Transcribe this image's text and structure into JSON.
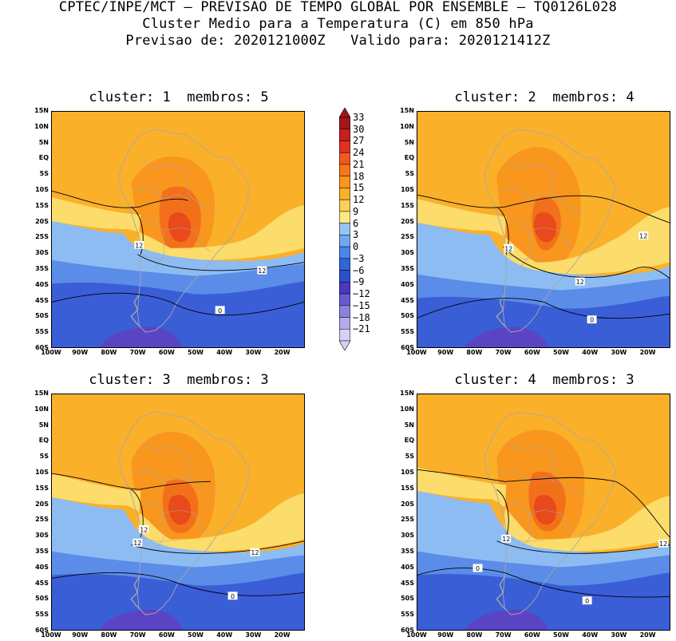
{
  "header": {
    "line1": "CPTEC/INPE/MCT — PREVISAO DE TEMPO GLOBAL POR ENSEMBLE — TQ0126L028",
    "line2": "Cluster Medio para a Temperatura (C) em 850 hPa",
    "line3": "Previsao de: 2020121000Z   Valido para: 2020121412Z"
  },
  "panels": [
    {
      "title": "cluster: 1  membros: 5",
      "contour_labels": [
        "12",
        "12",
        "0"
      ]
    },
    {
      "title": "cluster: 2  membros: 4",
      "contour_labels": [
        "12",
        "12",
        "12",
        "0"
      ]
    },
    {
      "title": "cluster: 3  membros: 3",
      "contour_labels": [
        "12",
        "12",
        "12",
        "0"
      ]
    },
    {
      "title": "cluster: 4  membros: 3",
      "contour_labels": [
        "12",
        "12",
        "0",
        "0"
      ]
    }
  ],
  "lat_labels": [
    "15N",
    "10N",
    "5N",
    "EQ",
    "5S",
    "10S",
    "15S",
    "20S",
    "25S",
    "30S",
    "35S",
    "40S",
    "45S",
    "50S",
    "55S",
    "60S"
  ],
  "lon_labels": [
    "100W",
    "90W",
    "80W",
    "70W",
    "60W",
    "50W",
    "40W",
    "30W",
    "20W"
  ],
  "colorbar": {
    "labels": [
      "33",
      "30",
      "27",
      "24",
      "21",
      "18",
      "15",
      "12",
      "9",
      "6",
      "3",
      "0",
      "−3",
      "−6",
      "−9",
      "−12",
      "−15",
      "−18",
      "−21"
    ],
    "colors": [
      "#a3141c",
      "#c81e1e",
      "#e03220",
      "#f05a1e",
      "#f7761a",
      "#fa961c",
      "#fbb02a",
      "#fcd056",
      "#fdea84",
      "#98c4f4",
      "#6fa8ef",
      "#4a86e6",
      "#2f66d8",
      "#2a4fca",
      "#4a38c0",
      "#6a5ad0",
      "#8c82de",
      "#b2aaea",
      "#d6d2f6"
    ]
  },
  "palette": {
    "ocean_cold": "#3a5ed6",
    "ocean_cool": "#5b8ce8",
    "ocean_mild": "#8cbcf2",
    "light_yellow": "#fcdc6a",
    "orange": "#fbb02a",
    "deep_orange": "#f8961e",
    "red_orange": "#f3701a",
    "red": "#e84a1c",
    "purple": "#5a44c4",
    "coast": "#a8a8a8",
    "contour": "#000000"
  }
}
